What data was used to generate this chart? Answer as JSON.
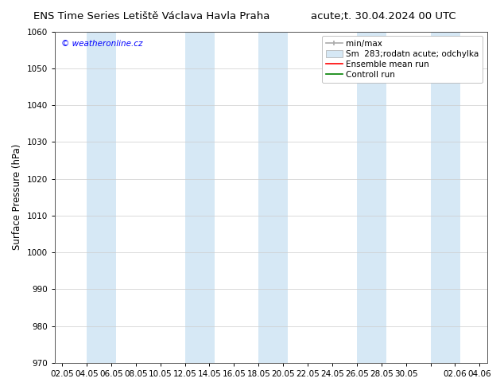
{
  "title_left": "ENS Time Series Letiště Václava Havla Praha",
  "title_right": "acute;t. 30.04.2024 00 UTC",
  "ylabel": "Surface Pressure (hPa)",
  "watermark": "© weatheronline.cz",
  "ylim": [
    970,
    1060
  ],
  "yticks": [
    970,
    980,
    990,
    1000,
    1010,
    1020,
    1030,
    1040,
    1050,
    1060
  ],
  "xtick_labels": [
    "02.05",
    "04.05",
    "06.05",
    "08.05",
    "10.05",
    "12.05",
    "14.05",
    "16.05",
    "18.05",
    "20.05",
    "22.05",
    "24.05",
    "26.05",
    "28.05",
    "30.05",
    "",
    "02.06",
    "04.06"
  ],
  "band_color": "#d6e8f5",
  "background_color": "#ffffff",
  "plot_bg_color": "#ffffff",
  "title_fontsize": 9.5,
  "axis_fontsize": 8.5,
  "tick_fontsize": 7.5,
  "legend_fontsize": 7.5
}
